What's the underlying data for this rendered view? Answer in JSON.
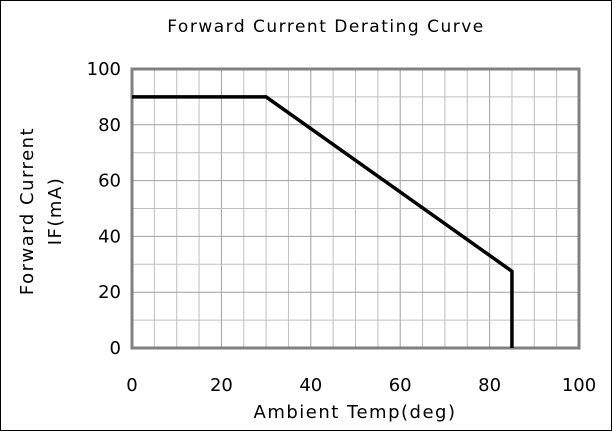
{
  "chart_data": {
    "type": "line",
    "title": "Forward Current Derating Curve",
    "xlabel": "Ambient Temp(deg)",
    "ylabel": [
      "Forward Current",
      "IF(mA)"
    ],
    "xlim": [
      0,
      100
    ],
    "ylim": [
      0,
      100
    ],
    "x_ticks": [
      0,
      20,
      40,
      60,
      80,
      100
    ],
    "y_ticks": [
      0,
      20,
      40,
      60,
      80,
      100
    ],
    "x_minor_step": 5,
    "y_minor_step": 10,
    "grid": true,
    "series": [
      {
        "x": [
          0,
          30,
          85,
          85
        ],
        "y": [
          90,
          90,
          27.5,
          0
        ]
      }
    ]
  },
  "colors": {
    "plot_border": "#808080",
    "grid": "#bfbfbf",
    "line": "#000000",
    "background": "#ffffff"
  }
}
